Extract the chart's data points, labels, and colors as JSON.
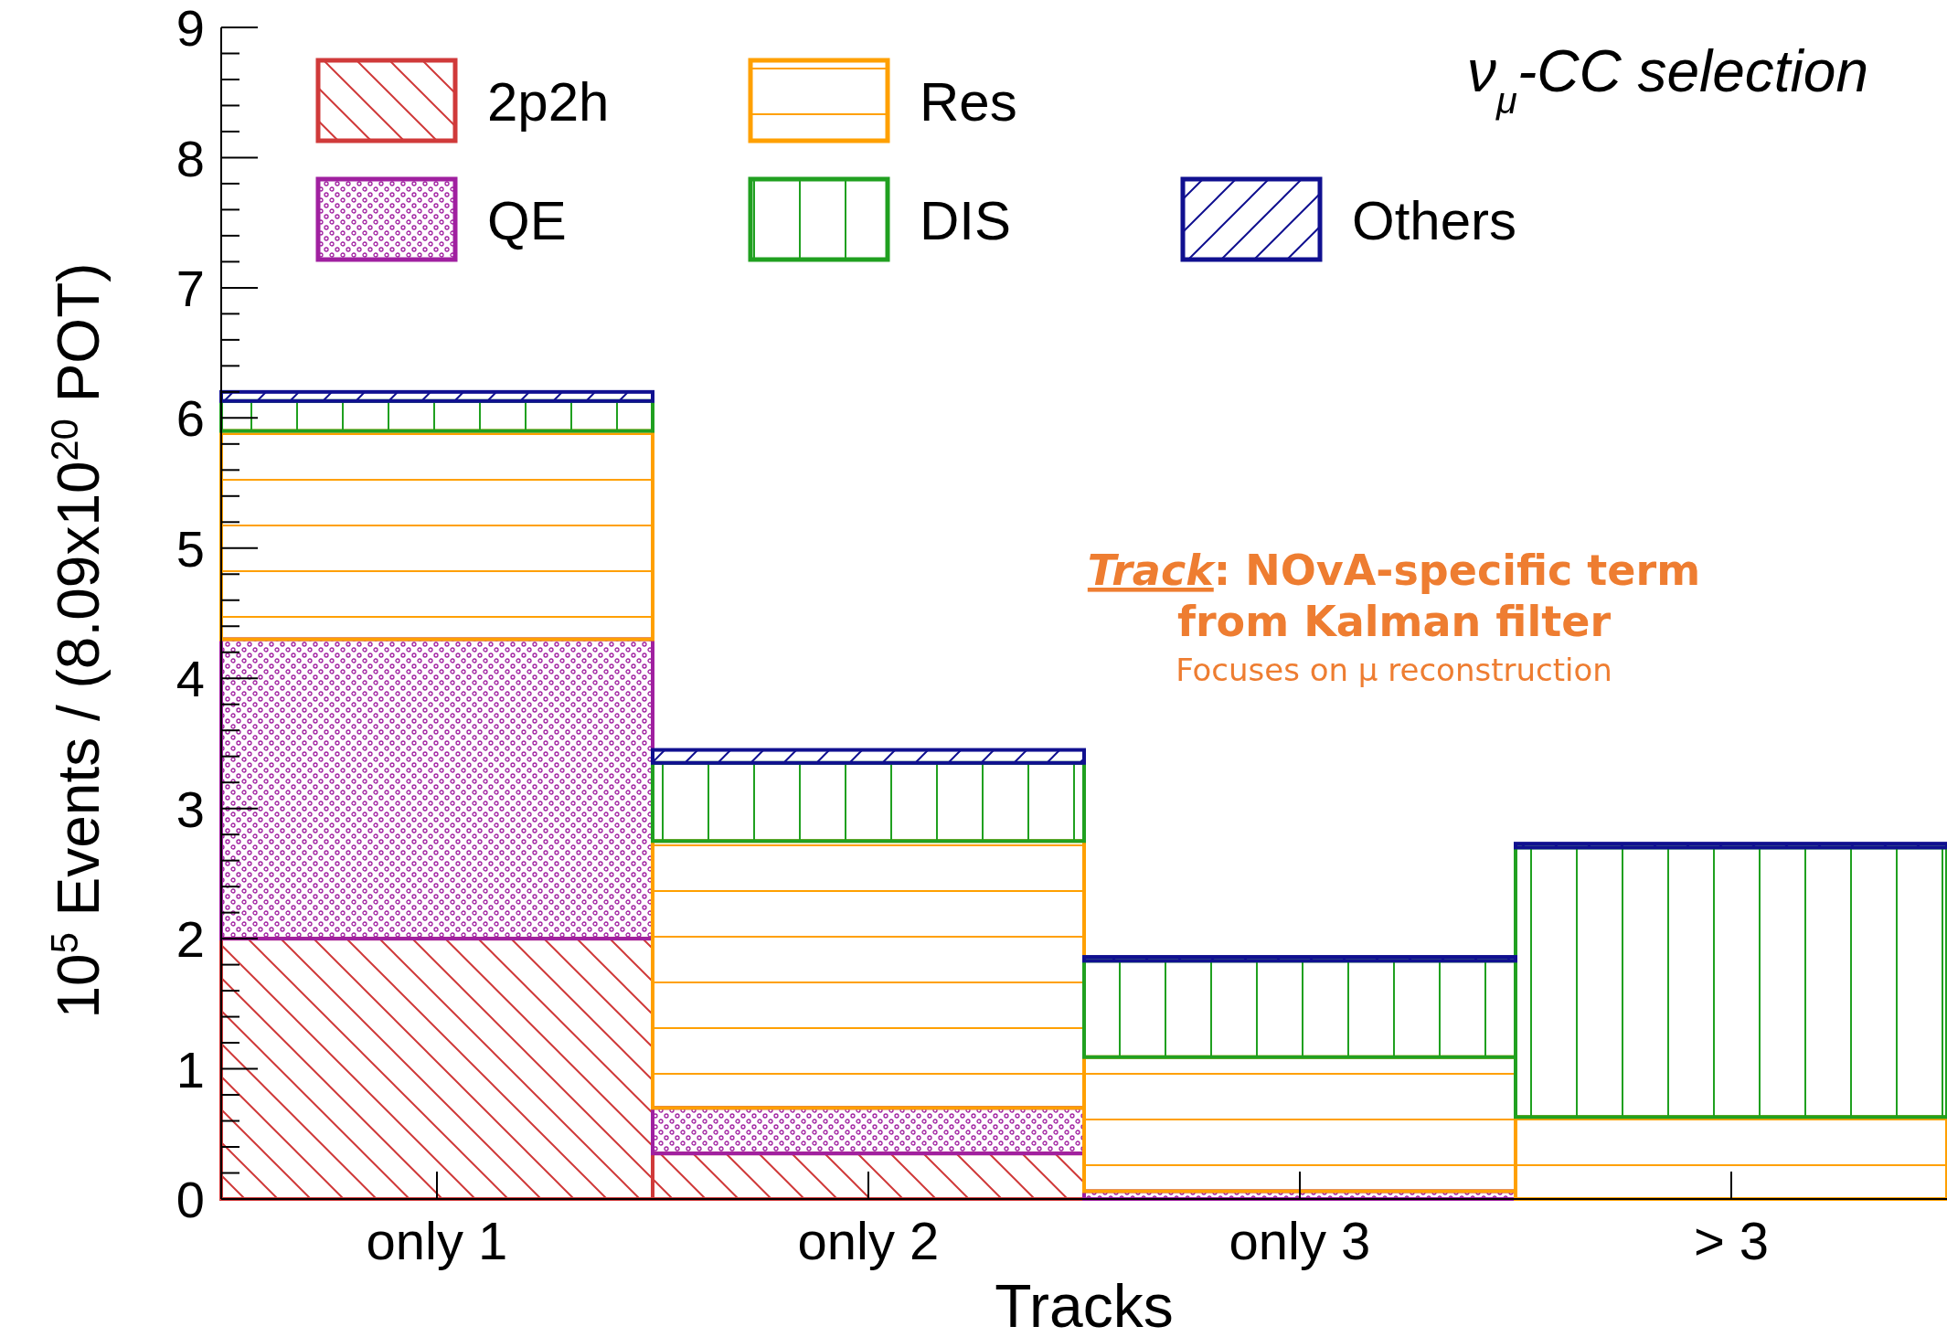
{
  "chart_data": {
    "type": "bar",
    "stacked": true,
    "title": "ν$_{μ}$-CC selection",
    "xlabel": "Tracks",
    "ylabel": "10$^{5}$ Events / (8.09x10$^{20}$ POT)",
    "categories": [
      "only 1",
      "only 2",
      "only 3",
      "> 3"
    ],
    "series": [
      {
        "name": "2p2h",
        "color": "#d03a3a",
        "values": [
          2.0,
          0.35,
          null,
          null
        ]
      },
      {
        "name": "QE",
        "color": "#a020a0",
        "values": [
          2.3,
          0.35,
          0.06,
          null
        ]
      },
      {
        "name": "Res",
        "color": "#ffa000",
        "values": [
          1.6,
          2.05,
          1.03,
          0.63
        ]
      },
      {
        "name": "DIS",
        "color": "#20a020",
        "values": [
          0.23,
          0.6,
          0.74,
          2.07
        ]
      },
      {
        "name": "Others",
        "color": "#101090",
        "values": [
          0.07,
          0.1,
          0.03,
          0.03
        ]
      }
    ],
    "ylim": [
      0,
      9
    ],
    "yticks": [
      0,
      1,
      2,
      3,
      4,
      5,
      6,
      7,
      8,
      9
    ],
    "grid": false,
    "legend": "top left",
    "annotations": [
      "Track: NOvA-specific term\nfrom Kalman filter",
      "Focuses on μ reconstruction"
    ]
  }
}
